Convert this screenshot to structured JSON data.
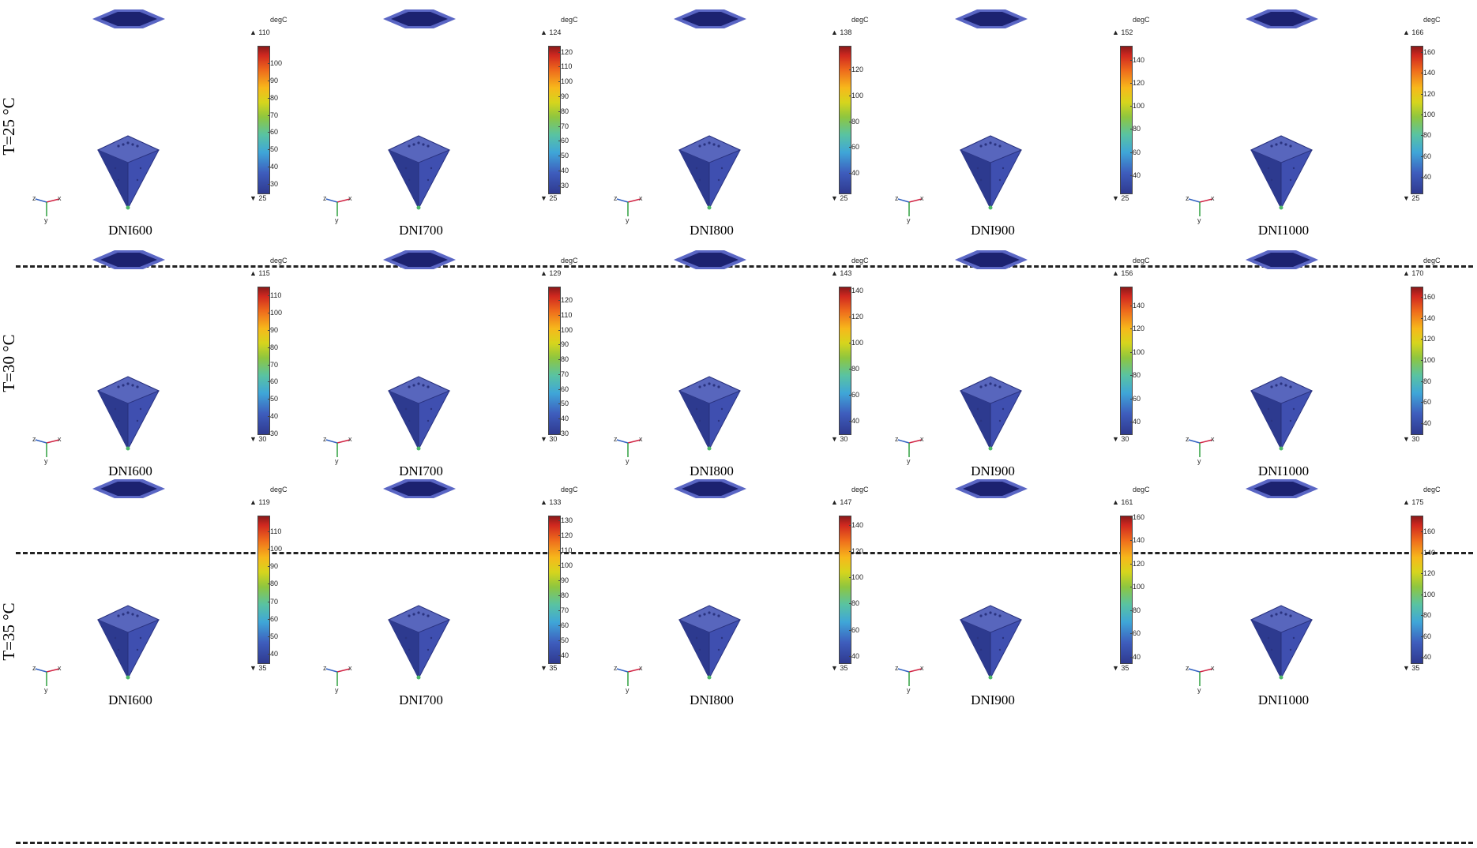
{
  "unit_label": "degC",
  "row_labels": [
    "T=25 °C",
    "T=30 °C",
    "T=35 °C"
  ],
  "axis_labels": {
    "x": "x",
    "y": "y",
    "z": "z"
  },
  "rows": [
    {
      "cells": [
        {
          "dni": "DNI600",
          "max": "110",
          "min": "25",
          "ticks": [
            "100",
            "90",
            "80",
            "70",
            "60",
            "50",
            "40",
            "30"
          ]
        },
        {
          "dni": "DNI700",
          "max": "124",
          "min": "25",
          "ticks": [
            "120",
            "110",
            "100",
            "90",
            "80",
            "70",
            "60",
            "50",
            "40",
            "30"
          ]
        },
        {
          "dni": "DNI800",
          "max": "138",
          "min": "25",
          "ticks": [
            "120",
            "100",
            "80",
            "60",
            "40"
          ]
        },
        {
          "dni": "DNI900",
          "max": "152",
          "min": "25",
          "ticks": [
            "140",
            "120",
            "100",
            "80",
            "60",
            "40"
          ]
        },
        {
          "dni": "DNI1000",
          "max": "166",
          "min": "25",
          "ticks": [
            "160",
            "140",
            "120",
            "100",
            "80",
            "60",
            "40"
          ]
        }
      ]
    },
    {
      "cells": [
        {
          "dni": "DNI600",
          "max": "115",
          "min": "30",
          "ticks": [
            "110",
            "100",
            "90",
            "80",
            "70",
            "60",
            "50",
            "40",
            "30"
          ]
        },
        {
          "dni": "DNI700",
          "max": "129",
          "min": "30",
          "ticks": [
            "120",
            "110",
            "100",
            "90",
            "80",
            "70",
            "60",
            "50",
            "40",
            "30"
          ]
        },
        {
          "dni": "DNI800",
          "max": "143",
          "min": "30",
          "ticks": [
            "140",
            "120",
            "100",
            "80",
            "60",
            "40"
          ]
        },
        {
          "dni": "DNI900",
          "max": "156",
          "min": "30",
          "ticks": [
            "140",
            "120",
            "100",
            "80",
            "60",
            "40"
          ]
        },
        {
          "dni": "DNI1000",
          "max": "170",
          "min": "30",
          "ticks": [
            "160",
            "140",
            "120",
            "100",
            "80",
            "60",
            "40"
          ]
        }
      ]
    },
    {
      "cells": [
        {
          "dni": "DNI600",
          "max": "119",
          "min": "35",
          "ticks": [
            "110",
            "100",
            "90",
            "80",
            "70",
            "60",
            "50",
            "40"
          ]
        },
        {
          "dni": "DNI700",
          "max": "133",
          "min": "35",
          "ticks": [
            "130",
            "120",
            "110",
            "100",
            "90",
            "80",
            "70",
            "60",
            "50",
            "40"
          ]
        },
        {
          "dni": "DNI800",
          "max": "147",
          "min": "35",
          "ticks": [
            "140",
            "120",
            "100",
            "80",
            "60",
            "40"
          ]
        },
        {
          "dni": "DNI900",
          "max": "161",
          "min": "35",
          "ticks": [
            "160",
            "140",
            "120",
            "100",
            "80",
            "60",
            "40"
          ]
        },
        {
          "dni": "DNI1000",
          "max": "175",
          "min": "35",
          "ticks": [
            "160",
            "140",
            "120",
            "100",
            "80",
            "60",
            "40"
          ]
        }
      ]
    }
  ],
  "colors": {
    "receiver_face": "#3f4fb0",
    "receiver_dark": "#2d3a8f",
    "plate_dark": "#1c2270",
    "plate_edge": "#5a66c4",
    "tip": "#4fb86a"
  }
}
